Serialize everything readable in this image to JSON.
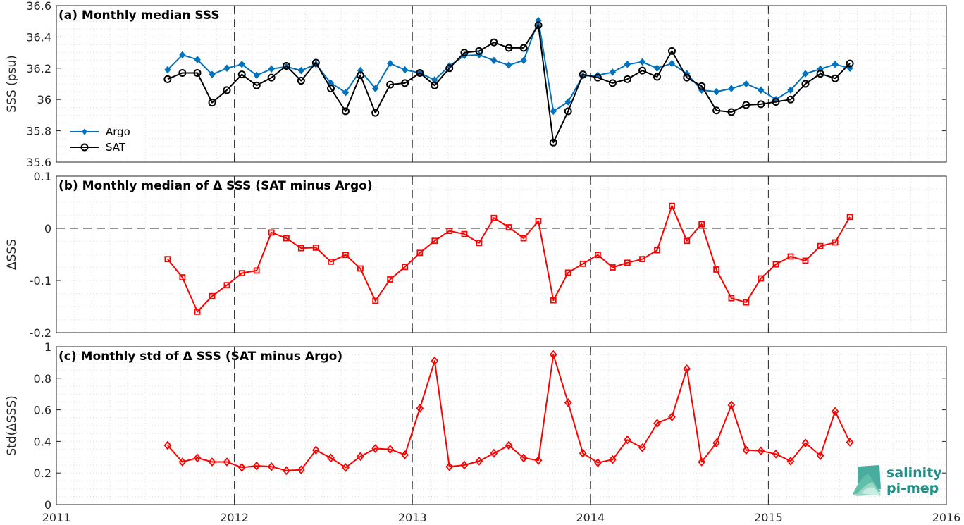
{
  "chart_data": [
    {
      "type": "line",
      "title": "(a) Monthly median SSS",
      "ylabel": "SSS (psu)",
      "ylim": [
        35.6,
        36.6
      ],
      "yticks": [
        35.6,
        35.8,
        36,
        36.2,
        36.4,
        36.6
      ],
      "ytick_labels": [
        "35.6",
        "35.8",
        "36",
        "36.2",
        "36.4",
        "36.6"
      ],
      "xlim": [
        2011,
        2016
      ],
      "legend": "left",
      "grid": true,
      "x": [
        2011.625,
        2011.708,
        2011.792,
        2011.875,
        2011.958,
        2012.042,
        2012.125,
        2012.208,
        2012.292,
        2012.375,
        2012.458,
        2012.542,
        2012.625,
        2012.708,
        2012.792,
        2012.875,
        2012.958,
        2013.042,
        2013.125,
        2013.208,
        2013.292,
        2013.375,
        2013.458,
        2013.542,
        2013.625,
        2013.708,
        2013.792,
        2013.875,
        2013.958,
        2014.042,
        2014.125,
        2014.208,
        2014.292,
        2014.375,
        2014.458,
        2014.542,
        2014.625,
        2014.708,
        2014.792,
        2014.875,
        2014.958,
        2015.042,
        2015.125,
        2015.208,
        2015.292,
        2015.375,
        2015.458
      ],
      "series": [
        {
          "name": "Argo",
          "color": "#0072bd",
          "marker": "diamond-filled",
          "values": [
            36.19,
            36.285,
            36.255,
            36.16,
            36.2,
            36.225,
            36.155,
            36.195,
            36.21,
            36.185,
            36.225,
            36.105,
            36.045,
            36.185,
            36.07,
            36.23,
            36.19,
            36.17,
            36.125,
            36.215,
            36.28,
            36.285,
            36.25,
            36.22,
            36.25,
            36.505,
            35.925,
            35.985,
            36.15,
            36.155,
            36.175,
            36.225,
            36.24,
            36.2,
            36.23,
            36.165,
            36.06,
            36.05,
            36.07,
            36.1,
            36.06,
            36.0,
            36.06,
            36.165,
            36.195,
            36.225,
            36.2
          ]
        },
        {
          "name": "SAT",
          "color": "#000000",
          "marker": "circle-open",
          "values": [
            36.13,
            36.17,
            36.17,
            35.98,
            36.06,
            36.16,
            36.09,
            36.14,
            36.215,
            36.12,
            36.235,
            36.07,
            35.925,
            36.155,
            35.915,
            36.095,
            36.105,
            36.17,
            36.09,
            36.2,
            36.3,
            36.31,
            36.365,
            36.33,
            36.33,
            36.475,
            35.725,
            35.925,
            36.16,
            36.14,
            36.105,
            36.13,
            36.185,
            36.145,
            36.31,
            36.14,
            36.085,
            35.93,
            35.92,
            35.965,
            35.97,
            35.985,
            36.0,
            36.1,
            36.165,
            36.135,
            36.23
          ]
        }
      ]
    },
    {
      "type": "line",
      "title": "(b) Monthly median of Δ SSS (SAT minus Argo)",
      "ylabel": "ΔSSS",
      "ylim": [
        -0.2,
        0.1
      ],
      "yticks": [
        -0.2,
        -0.1,
        0,
        0.1
      ],
      "ytick_labels": [
        "-0.2",
        "-0.1",
        "0",
        "0.1"
      ],
      "xlim": [
        2011,
        2016
      ],
      "grid": true,
      "zero_line": true,
      "x": [
        2011.625,
        2011.708,
        2011.792,
        2011.875,
        2011.958,
        2012.042,
        2012.125,
        2012.208,
        2012.292,
        2012.375,
        2012.458,
        2012.542,
        2012.625,
        2012.708,
        2012.792,
        2012.875,
        2012.958,
        2013.042,
        2013.125,
        2013.208,
        2013.292,
        2013.375,
        2013.458,
        2013.542,
        2013.625,
        2013.708,
        2013.792,
        2013.875,
        2013.958,
        2014.042,
        2014.125,
        2014.208,
        2014.292,
        2014.375,
        2014.458,
        2014.542,
        2014.625,
        2014.708,
        2014.792,
        2014.875,
        2014.958,
        2015.042,
        2015.125,
        2015.208,
        2015.292,
        2015.375,
        2015.458
      ],
      "series": [
        {
          "color": "#ff0000",
          "marker": "square-open",
          "values": [
            -0.059,
            -0.094,
            -0.16,
            -0.13,
            -0.109,
            -0.086,
            -0.081,
            -0.008,
            -0.019,
            -0.038,
            -0.037,
            -0.064,
            -0.051,
            -0.077,
            -0.139,
            -0.098,
            -0.074,
            -0.047,
            -0.024,
            -0.005,
            -0.011,
            -0.028,
            0.02,
            0.002,
            -0.019,
            0.014,
            -0.138,
            -0.085,
            -0.068,
            -0.051,
            -0.075,
            -0.066,
            -0.059,
            -0.042,
            0.043,
            -0.024,
            0.008,
            -0.079,
            -0.134,
            -0.142,
            -0.096,
            -0.069,
            -0.054,
            -0.062,
            -0.034,
            -0.027,
            0.022
          ]
        }
      ]
    },
    {
      "type": "line",
      "title": "(c) Monthly std of Δ SSS (SAT minus Argo)",
      "ylabel": "Std(ΔSSS)",
      "ylim": [
        0,
        1
      ],
      "yticks": [
        0,
        0.2,
        0.4,
        0.6,
        0.8,
        1
      ],
      "ytick_labels": [
        "0",
        "0.2",
        "0.4",
        "0.6",
        "0.8",
        "1"
      ],
      "xlim": [
        2011,
        2016
      ],
      "xticks": [
        2011,
        2012,
        2013,
        2014,
        2015,
        2016
      ],
      "xtick_labels": [
        "2011",
        "2012",
        "2013",
        "2014",
        "2015",
        "2016"
      ],
      "grid": true,
      "x": [
        2011.625,
        2011.708,
        2011.792,
        2011.875,
        2011.958,
        2012.042,
        2012.125,
        2012.208,
        2012.292,
        2012.375,
        2012.458,
        2012.542,
        2012.625,
        2012.708,
        2012.792,
        2012.875,
        2012.958,
        2013.042,
        2013.125,
        2013.208,
        2013.292,
        2013.375,
        2013.458,
        2013.542,
        2013.625,
        2013.708,
        2013.792,
        2013.875,
        2013.958,
        2014.042,
        2014.125,
        2014.208,
        2014.292,
        2014.375,
        2014.458,
        2014.542,
        2014.625,
        2014.708,
        2014.792,
        2014.875,
        2014.958,
        2015.042,
        2015.125,
        2015.208,
        2015.292,
        2015.375,
        2015.458
      ],
      "series": [
        {
          "color": "#ff0000",
          "marker": "diamond-open",
          "values": [
            0.375,
            0.27,
            0.295,
            0.27,
            0.27,
            0.235,
            0.245,
            0.24,
            0.215,
            0.22,
            0.345,
            0.295,
            0.235,
            0.305,
            0.355,
            0.35,
            0.315,
            0.61,
            0.91,
            0.24,
            0.25,
            0.275,
            0.325,
            0.375,
            0.295,
            0.28,
            0.95,
            0.645,
            0.325,
            0.265,
            0.285,
            0.41,
            0.36,
            0.515,
            0.555,
            0.86,
            0.27,
            0.39,
            0.63,
            0.345,
            0.34,
            0.32,
            0.275,
            0.39,
            0.31,
            0.59,
            0.395
          ]
        }
      ]
    }
  ],
  "logo": {
    "line1": "salinity",
    "line2": "pi-mep",
    "color": "#1f8f86"
  }
}
